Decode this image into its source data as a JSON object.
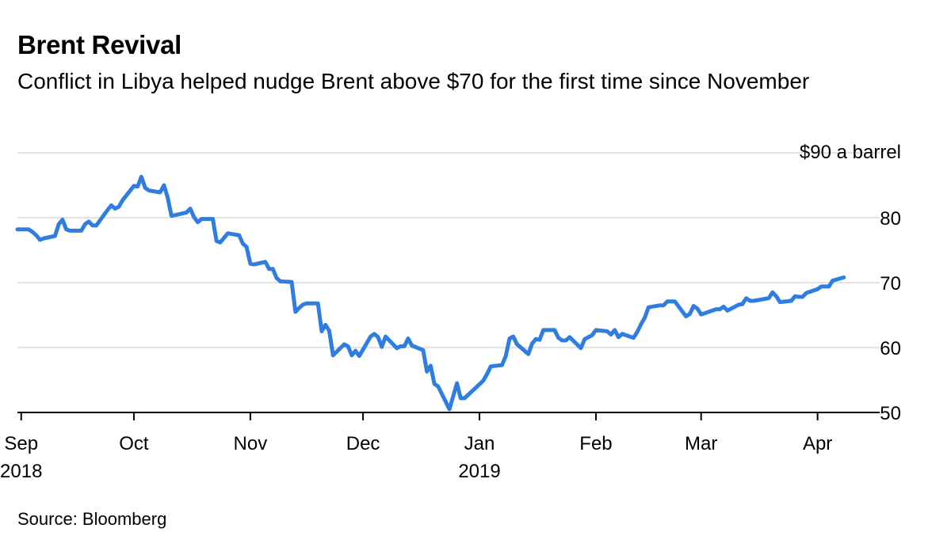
{
  "chart_data": {
    "type": "line",
    "title": "Brent Revival",
    "subtitle": "Conflict in Libya helped nudge Brent above $70 for the first time since November",
    "source": "Source: Bloomberg",
    "y_unit_label": "$90 a barrel",
    "ylim": [
      50,
      90
    ],
    "y_ticks": [
      50,
      60,
      70,
      80,
      90
    ],
    "y_tick_labels": [
      "50",
      "60",
      "70",
      "80",
      ""
    ],
    "grid": true,
    "x_range": [
      "2018-08-31",
      "2019-04-15"
    ],
    "x_ticks": [
      {
        "date": "2018-09-01",
        "label": "Sep",
        "sub": "2018"
      },
      {
        "date": "2018-10-01",
        "label": "Oct",
        "sub": ""
      },
      {
        "date": "2018-11-01",
        "label": "Nov",
        "sub": ""
      },
      {
        "date": "2018-12-01",
        "label": "Dec",
        "sub": ""
      },
      {
        "date": "2019-01-01",
        "label": "Jan",
        "sub": "2019"
      },
      {
        "date": "2019-02-01",
        "label": "Feb",
        "sub": ""
      },
      {
        "date": "2019-03-01",
        "label": "Mar",
        "sub": ""
      },
      {
        "date": "2019-04-01",
        "label": "Apr",
        "sub": ""
      }
    ],
    "series": [
      {
        "name": "",
        "color": "#2f7de1",
        "points": [
          [
            "2018-08-31",
            78.2
          ],
          [
            "2018-09-03",
            78.2
          ],
          [
            "2018-09-04",
            77.8
          ],
          [
            "2018-09-05",
            77.3
          ],
          [
            "2018-09-06",
            76.6
          ],
          [
            "2018-09-07",
            76.8
          ],
          [
            "2018-09-10",
            77.2
          ],
          [
            "2018-09-11",
            79.0
          ],
          [
            "2018-09-12",
            79.7
          ],
          [
            "2018-09-13",
            78.2
          ],
          [
            "2018-09-14",
            78.0
          ],
          [
            "2018-09-17",
            78.0
          ],
          [
            "2018-09-18",
            79.0
          ],
          [
            "2018-09-19",
            79.4
          ],
          [
            "2018-09-20",
            78.8
          ],
          [
            "2018-09-21",
            78.8
          ],
          [
            "2018-09-24",
            81.2
          ],
          [
            "2018-09-25",
            81.9
          ],
          [
            "2018-09-26",
            81.4
          ],
          [
            "2018-09-27",
            81.7
          ],
          [
            "2018-09-28",
            82.7
          ],
          [
            "2018-10-01",
            84.9
          ],
          [
            "2018-10-02",
            84.8
          ],
          [
            "2018-10-03",
            86.3
          ],
          [
            "2018-10-04",
            84.6
          ],
          [
            "2018-10-05",
            84.2
          ],
          [
            "2018-10-08",
            83.9
          ],
          [
            "2018-10-09",
            85.0
          ],
          [
            "2018-10-10",
            83.1
          ],
          [
            "2018-10-11",
            80.3
          ],
          [
            "2018-10-12",
            80.4
          ],
          [
            "2018-10-15",
            80.8
          ],
          [
            "2018-10-16",
            81.4
          ],
          [
            "2018-10-17",
            80.1
          ],
          [
            "2018-10-18",
            79.3
          ],
          [
            "2018-10-19",
            79.8
          ],
          [
            "2018-10-22",
            79.8
          ],
          [
            "2018-10-23",
            76.4
          ],
          [
            "2018-10-24",
            76.2
          ],
          [
            "2018-10-25",
            76.9
          ],
          [
            "2018-10-26",
            77.6
          ],
          [
            "2018-10-29",
            77.3
          ],
          [
            "2018-10-30",
            76.0
          ],
          [
            "2018-10-31",
            75.5
          ],
          [
            "2018-11-01",
            72.9
          ],
          [
            "2018-11-02",
            72.8
          ],
          [
            "2018-11-05",
            73.2
          ],
          [
            "2018-11-06",
            72.1
          ],
          [
            "2018-11-07",
            72.1
          ],
          [
            "2018-11-08",
            70.7
          ],
          [
            "2018-11-09",
            70.2
          ],
          [
            "2018-11-12",
            70.1
          ],
          [
            "2018-11-13",
            65.5
          ],
          [
            "2018-11-14",
            66.1
          ],
          [
            "2018-11-15",
            66.6
          ],
          [
            "2018-11-16",
            66.8
          ],
          [
            "2018-11-19",
            66.8
          ],
          [
            "2018-11-20",
            62.5
          ],
          [
            "2018-11-21",
            63.5
          ],
          [
            "2018-11-22",
            62.6
          ],
          [
            "2018-11-23",
            58.8
          ],
          [
            "2018-11-26",
            60.5
          ],
          [
            "2018-11-27",
            60.2
          ],
          [
            "2018-11-28",
            58.8
          ],
          [
            "2018-11-29",
            59.5
          ],
          [
            "2018-11-30",
            58.7
          ],
          [
            "2018-12-03",
            61.7
          ],
          [
            "2018-12-04",
            62.1
          ],
          [
            "2018-12-05",
            61.6
          ],
          [
            "2018-12-06",
            60.1
          ],
          [
            "2018-12-07",
            61.7
          ],
          [
            "2018-12-10",
            59.9
          ],
          [
            "2018-12-11",
            60.2
          ],
          [
            "2018-12-12",
            60.2
          ],
          [
            "2018-12-13",
            61.4
          ],
          [
            "2018-12-14",
            60.3
          ],
          [
            "2018-12-17",
            59.6
          ],
          [
            "2018-12-18",
            56.3
          ],
          [
            "2018-12-19",
            57.2
          ],
          [
            "2018-12-20",
            54.4
          ],
          [
            "2018-12-21",
            54.0
          ],
          [
            "2018-12-24",
            50.5
          ],
          [
            "2018-12-26",
            54.5
          ],
          [
            "2018-12-27",
            52.2
          ],
          [
            "2018-12-28",
            52.2
          ],
          [
            "2018-12-31",
            53.8
          ],
          [
            "2019-01-02",
            54.9
          ],
          [
            "2019-01-03",
            55.9
          ],
          [
            "2019-01-04",
            57.1
          ],
          [
            "2019-01-07",
            57.3
          ],
          [
            "2019-01-08",
            58.7
          ],
          [
            "2019-01-09",
            61.4
          ],
          [
            "2019-01-10",
            61.7
          ],
          [
            "2019-01-11",
            60.5
          ],
          [
            "2019-01-14",
            59.0
          ],
          [
            "2019-01-15",
            60.6
          ],
          [
            "2019-01-16",
            61.3
          ],
          [
            "2019-01-17",
            61.2
          ],
          [
            "2019-01-18",
            62.7
          ],
          [
            "2019-01-21",
            62.7
          ],
          [
            "2019-01-22",
            61.5
          ],
          [
            "2019-01-23",
            61.1
          ],
          [
            "2019-01-24",
            61.1
          ],
          [
            "2019-01-25",
            61.6
          ],
          [
            "2019-01-28",
            59.9
          ],
          [
            "2019-01-29",
            61.3
          ],
          [
            "2019-01-30",
            61.6
          ],
          [
            "2019-01-31",
            61.9
          ],
          [
            "2019-02-01",
            62.7
          ],
          [
            "2019-02-04",
            62.5
          ],
          [
            "2019-02-05",
            62.0
          ],
          [
            "2019-02-06",
            62.7
          ],
          [
            "2019-02-07",
            61.6
          ],
          [
            "2019-02-08",
            62.1
          ],
          [
            "2019-02-11",
            61.5
          ],
          [
            "2019-02-12",
            62.4
          ],
          [
            "2019-02-13",
            63.6
          ],
          [
            "2019-02-14",
            64.6
          ],
          [
            "2019-02-15",
            66.2
          ],
          [
            "2019-02-18",
            66.5
          ],
          [
            "2019-02-19",
            66.5
          ],
          [
            "2019-02-20",
            67.1
          ],
          [
            "2019-02-21",
            67.1
          ],
          [
            "2019-02-22",
            67.1
          ],
          [
            "2019-02-25",
            64.8
          ],
          [
            "2019-02-26",
            65.2
          ],
          [
            "2019-02-27",
            66.4
          ],
          [
            "2019-02-28",
            66.0
          ],
          [
            "2019-03-01",
            65.1
          ],
          [
            "2019-03-04",
            65.7
          ],
          [
            "2019-03-05",
            65.9
          ],
          [
            "2019-03-06",
            65.9
          ],
          [
            "2019-03-07",
            66.3
          ],
          [
            "2019-03-08",
            65.7
          ],
          [
            "2019-03-11",
            66.6
          ],
          [
            "2019-03-12",
            66.7
          ],
          [
            "2019-03-13",
            67.6
          ],
          [
            "2019-03-14",
            67.2
          ],
          [
            "2019-03-15",
            67.2
          ],
          [
            "2019-03-18",
            67.5
          ],
          [
            "2019-03-19",
            67.6
          ],
          [
            "2019-03-20",
            68.5
          ],
          [
            "2019-03-21",
            67.9
          ],
          [
            "2019-03-22",
            67.0
          ],
          [
            "2019-03-25",
            67.2
          ],
          [
            "2019-03-26",
            67.9
          ],
          [
            "2019-03-27",
            67.8
          ],
          [
            "2019-03-28",
            67.8
          ],
          [
            "2019-03-29",
            68.4
          ],
          [
            "2019-04-01",
            69.0
          ],
          [
            "2019-04-02",
            69.4
          ],
          [
            "2019-04-03",
            69.4
          ],
          [
            "2019-04-04",
            69.4
          ],
          [
            "2019-04-05",
            70.3
          ],
          [
            "2019-04-08",
            70.8
          ]
        ]
      }
    ]
  }
}
